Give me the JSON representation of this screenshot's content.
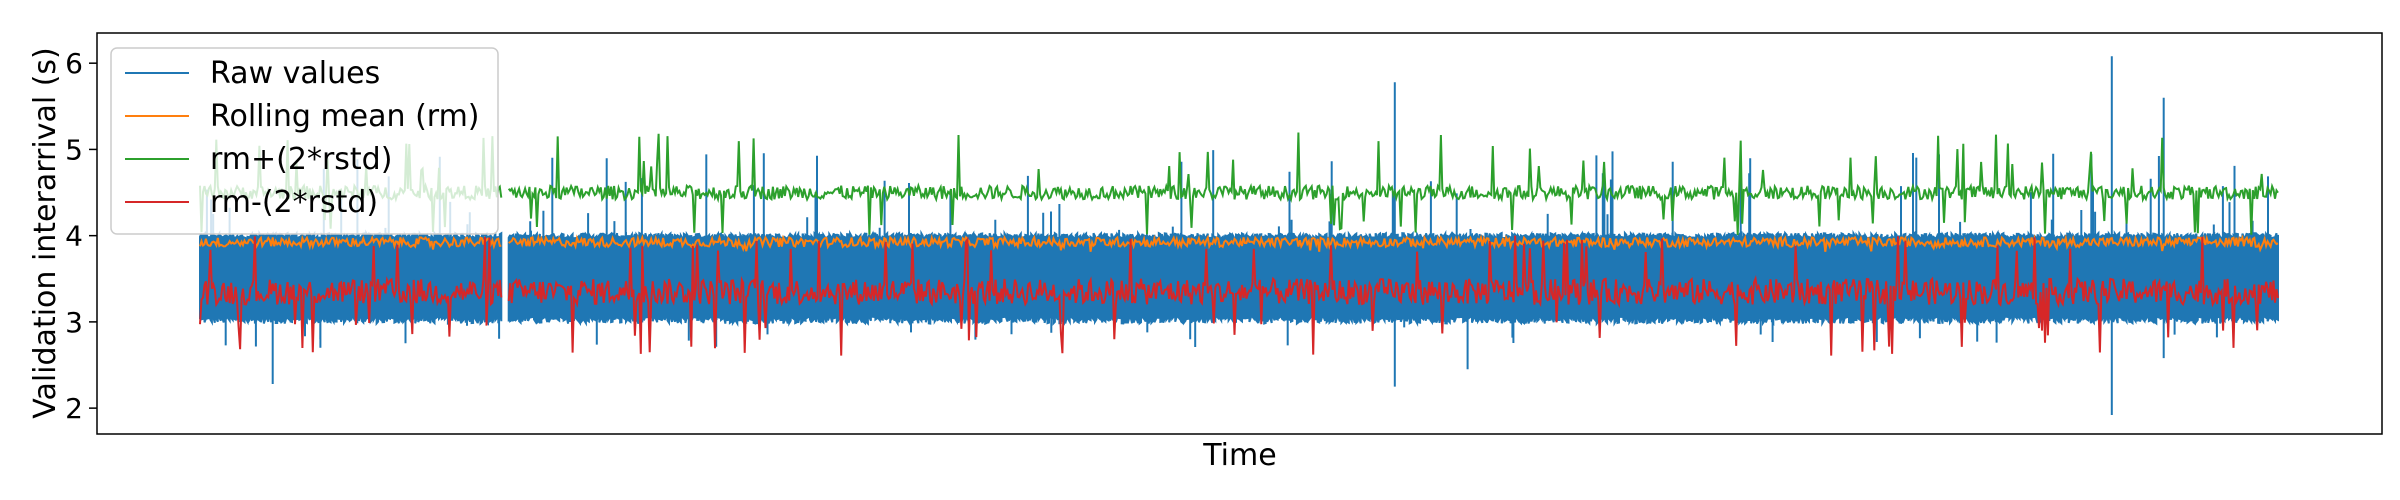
{
  "chart_data": {
    "type": "line",
    "title": "",
    "xlabel": "Time",
    "ylabel": "Validation interarrival (s)",
    "ylim": [
      1.7,
      6.35
    ],
    "yticks": [
      2,
      3,
      4,
      5,
      6
    ],
    "x_ticks_shown": false,
    "grid": false,
    "legend_position": "top-left",
    "series": [
      {
        "name": "Raw values",
        "color": "#1f77b4",
        "description_values": {
          "min": 1.92,
          "max": 6.08,
          "typical_low": 3.0,
          "typical_high": 4.0
        },
        "spikes": [
          {
            "x": 0.035,
            "y": 2.28
          },
          {
            "x": 0.575,
            "y": 5.78
          },
          {
            "x": 0.575,
            "y": 2.25
          },
          {
            "x": 0.61,
            "y": 2.45
          },
          {
            "x": 0.92,
            "y": 6.08
          },
          {
            "x": 0.92,
            "y": 1.92
          },
          {
            "x": 0.945,
            "y": 5.6
          },
          {
            "x": 0.945,
            "y": 2.58
          }
        ]
      },
      {
        "name": "Rolling mean (rm)",
        "color": "#ff7f0e",
        "description_values": {
          "typical": 3.92,
          "min": 3.8,
          "max": 4.0
        }
      },
      {
        "name": "rm+(2*rstd)",
        "color": "#2ca02c",
        "description_values": {
          "typical": 4.5,
          "min": 3.95,
          "max": 5.45
        }
      },
      {
        "name": "rm-(2*rstd)",
        "color": "#d62728",
        "description_values": {
          "typical": 3.35,
          "min": 2.4,
          "max": 4.0
        }
      }
    ]
  }
}
